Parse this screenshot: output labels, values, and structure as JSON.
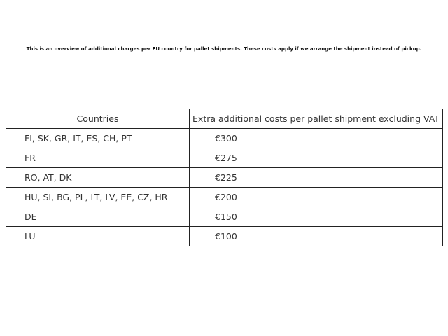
{
  "intro": "This is an overview of additional charges per EU country for pallet shipments. These costs apply if we arrange the shipment instead of pickup.",
  "table": {
    "headers": [
      "Countries",
      "Extra additional costs per pallet shipment excluding VAT"
    ],
    "rows": [
      {
        "countries": "FI, SK, GR, IT, ES, CH, PT",
        "cost": "€300"
      },
      {
        "countries": "FR",
        "cost": "€275"
      },
      {
        "countries": "RO, AT, DK",
        "cost": "€225"
      },
      {
        "countries": "HU, SI, BG, PL, LT, LV, EE, CZ, HR",
        "cost": "€200"
      },
      {
        "countries": "DE",
        "cost": "€150"
      },
      {
        "countries": "LU",
        "cost": "€100"
      }
    ]
  }
}
